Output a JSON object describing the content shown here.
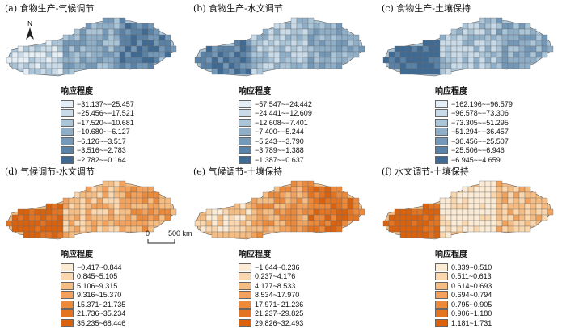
{
  "legend_title": "响应程度",
  "north_label": "N",
  "scale": {
    "zero": "0",
    "distance": "500 km"
  },
  "panels": [
    {
      "title": "(a) 食物生产-气候调节",
      "palette": "blue",
      "colors": [
        "#e4eef4",
        "#c9dbe8",
        "#aac4d8",
        "#8fafc9",
        "#7398b8",
        "#5a82a7",
        "#3f6a93"
      ],
      "classes": [
        "−31.137~−25.457",
        "−25.456~−17.521",
        "−17.520~−10.681",
        "−10.680~−6.127",
        "−6.126~−3.517",
        "−3.516~−2.783",
        "−2.782~−0.164"
      ]
    },
    {
      "title": "(b) 食物生产-水文调节",
      "palette": "blue",
      "colors": [
        "#e4eef4",
        "#c9dbe8",
        "#aac4d8",
        "#8fafc9",
        "#7398b8",
        "#5a82a7",
        "#3f6a93"
      ],
      "classes": [
        "−57.547~−24.442",
        "−24.441~−12.609",
        "−12.608~−7.401",
        "−7.400~−5.244",
        "−5.243~−3.790",
        "−3.789~−1.388",
        "−1.387~−0.637"
      ]
    },
    {
      "title": "(c) 食物生产-土壤保持",
      "palette": "blue",
      "colors": [
        "#e4eef4",
        "#c9dbe8",
        "#aac4d8",
        "#8fafc9",
        "#7398b8",
        "#5a82a7",
        "#3f6a93"
      ],
      "classes": [
        "−162.196~−96.579",
        "−96.578~−73.306",
        "−73.305~−51.295",
        "−51.294~−36.457",
        "−36.456~−25.507",
        "−25.506~−6.946",
        "−6.945~−4.659"
      ]
    },
    {
      "title": "(d) 气候调节-水文调节",
      "palette": "orange",
      "colors": [
        "#fcebd4",
        "#fad7ae",
        "#f6bd82",
        "#f2a25c",
        "#ec8a3c",
        "#e37422",
        "#d9620e"
      ],
      "classes": [
        "−0.417~0.844",
        "0.845~5.105",
        "5.106~9.315",
        "9.316~15.370",
        "15.371~21.735",
        "21.736~35.234",
        "35.235~68.446"
      ]
    },
    {
      "title": "(e) 气候调节-土壤保持",
      "palette": "orange",
      "colors": [
        "#fcebd4",
        "#fad7ae",
        "#f6bd82",
        "#f2a25c",
        "#ec8a3c",
        "#e37422",
        "#d9620e"
      ],
      "classes": [
        "−1.644~0.236",
        "0.237~4.176",
        "4.177~8.533",
        "8.534~17.970",
        "17.971~21.236",
        "21.237~29.825",
        "29.826~32.493"
      ]
    },
    {
      "title": "(f) 水文调节-土壤保持",
      "palette": "orange",
      "colors": [
        "#fcebd4",
        "#fad7ae",
        "#f6bd82",
        "#f2a25c",
        "#ec8a3c",
        "#e37422",
        "#d9620e"
      ],
      "classes": [
        "0.339~0.510",
        "0.511~0.613",
        "0.614~0.693",
        "0.694~0.794",
        "0.795~0.905",
        "0.906~1.180",
        "1.181~1.731"
      ]
    }
  ]
}
